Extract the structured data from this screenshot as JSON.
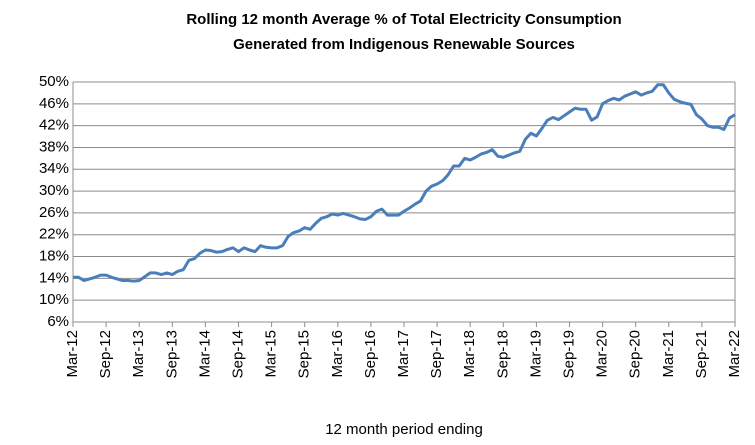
{
  "chart_data": {
    "type": "line",
    "title": [
      "Rolling 12 month Average % of Total Electricity Consumption",
      "Generated from Indigenous Renewable Sources"
    ],
    "xlabel": "12 month period ending",
    "categories": [
      "Mar-12",
      null,
      null,
      null,
      null,
      null,
      "Sep-12",
      null,
      null,
      null,
      null,
      null,
      "Mar-13",
      null,
      null,
      null,
      null,
      null,
      "Sep-13",
      null,
      null,
      null,
      null,
      null,
      "Mar-14",
      null,
      null,
      null,
      null,
      null,
      "Sep-14",
      null,
      null,
      null,
      null,
      null,
      "Mar-15",
      null,
      null,
      null,
      null,
      null,
      "Sep-15",
      null,
      null,
      null,
      null,
      null,
      "Mar-16",
      null,
      null,
      null,
      null,
      null,
      "Sep-16",
      null,
      null,
      null,
      null,
      null,
      "Mar-17",
      null,
      null,
      null,
      null,
      null,
      "Sep-17",
      null,
      null,
      null,
      null,
      null,
      "Mar-18",
      null,
      null,
      null,
      null,
      null,
      "Sep-18",
      null,
      null,
      null,
      null,
      null,
      "Mar-19",
      null,
      null,
      null,
      null,
      null,
      "Sep-19",
      null,
      null,
      null,
      null,
      null,
      "Mar-20",
      null,
      null,
      null,
      null,
      null,
      "Sep-20",
      null,
      null,
      null,
      null,
      null,
      "Mar-21",
      null,
      null,
      null,
      null,
      null,
      "Sep-21",
      null,
      null,
      null,
      null,
      null,
      "Mar-22"
    ],
    "values": [
      14.2,
      14.2,
      13.6,
      13.9,
      14.2,
      14.6,
      14.6,
      14.2,
      13.9,
      13.6,
      13.6,
      13.5,
      13.6,
      14.3,
      15.0,
      15.0,
      14.7,
      15.0,
      14.7,
      15.3,
      15.6,
      17.3,
      17.6,
      18.6,
      19.2,
      19.1,
      18.8,
      18.9,
      19.3,
      19.6,
      18.9,
      19.6,
      19.2,
      18.9,
      20.0,
      19.7,
      19.6,
      19.6,
      20.0,
      21.7,
      22.4,
      22.7,
      23.3,
      23.0,
      24.1,
      25.0,
      25.3,
      25.8,
      25.6,
      25.9,
      25.6,
      25.3,
      24.9,
      24.8,
      25.3,
      26.3,
      26.7,
      25.6,
      25.6,
      25.6,
      26.3,
      26.9,
      27.6,
      28.2,
      30.0,
      30.9,
      31.3,
      31.9,
      33.0,
      34.6,
      34.6,
      36.0,
      35.7,
      36.2,
      36.8,
      37.1,
      37.6,
      36.4,
      36.2,
      36.6,
      37.0,
      37.3,
      39.5,
      40.6,
      40.1,
      41.5,
      43.0,
      43.5,
      43.1,
      43.8,
      44.5,
      45.2,
      45.0,
      45.0,
      43.0,
      43.6,
      46.0,
      46.6,
      47.0,
      46.7,
      47.4,
      47.8,
      48.2,
      47.6,
      48.0,
      48.3,
      49.5,
      49.5,
      48.0,
      46.8,
      46.4,
      46.1,
      45.9,
      44.0,
      43.2,
      42.0,
      41.7,
      41.7,
      41.3,
      43.4,
      44.0
    ],
    "color": "#4a7ebb",
    "ylim": [
      6,
      50
    ],
    "yticks": [
      {
        "value": 6,
        "label": "6%"
      },
      {
        "value": 10,
        "label": "10%"
      },
      {
        "value": 14,
        "label": "14%"
      },
      {
        "value": 18,
        "label": "18%"
      },
      {
        "value": 22,
        "label": "22%"
      },
      {
        "value": 26,
        "label": "26%"
      },
      {
        "value": 30,
        "label": "30%"
      },
      {
        "value": 34,
        "label": "34%"
      },
      {
        "value": 38,
        "label": "38%"
      },
      {
        "value": 42,
        "label": "42%"
      },
      {
        "value": 46,
        "label": "46%"
      },
      {
        "value": 50,
        "label": "50%"
      }
    ],
    "grid": true
  }
}
